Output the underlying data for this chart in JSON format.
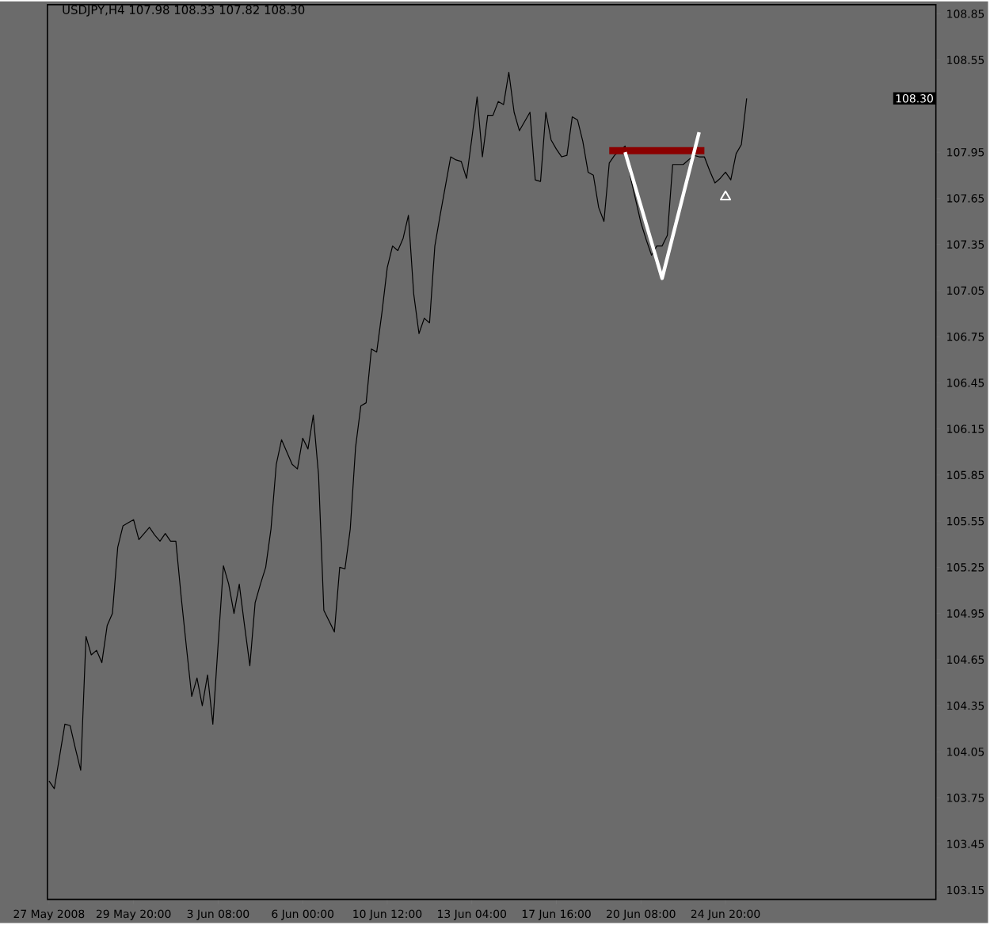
{
  "chart_data": {
    "type": "line",
    "title": "USDJPY,H4  107.98 108.33 107.82 108.30",
    "categories": [
      "27 May 2008",
      null,
      null,
      null,
      null,
      null,
      null,
      null,
      null,
      null,
      null,
      null,
      null,
      null,
      null,
      null,
      "29 May 20:00",
      null,
      null,
      null,
      null,
      null,
      null,
      null,
      null,
      null,
      null,
      null,
      null,
      null,
      null,
      null,
      "3 Jun 08:00",
      null,
      null,
      null,
      null,
      null,
      null,
      null,
      null,
      null,
      null,
      null,
      null,
      null,
      null,
      null,
      "6 Jun 00:00",
      null,
      null,
      null,
      null,
      null,
      null,
      null,
      null,
      null,
      null,
      null,
      null,
      null,
      null,
      null,
      "10 Jun 12:00",
      null,
      null,
      null,
      null,
      null,
      null,
      null,
      null,
      null,
      null,
      null,
      null,
      null,
      null,
      null,
      "13 Jun 04:00",
      null,
      null,
      null,
      null,
      null,
      null,
      null,
      null,
      null,
      null,
      null,
      null,
      null,
      null,
      null,
      "17 Jun 16:00",
      null,
      null,
      null,
      null,
      null,
      null,
      null,
      null,
      null,
      null,
      null,
      null,
      null,
      null,
      null,
      "20 Jun 08:00",
      null,
      null,
      null,
      null,
      null,
      null,
      null,
      null,
      null,
      null,
      null,
      null,
      null,
      null,
      null,
      "24 Jun 20:00",
      null,
      null,
      null,
      null,
      null,
      null,
      null,
      null,
      null,
      null,
      null,
      null,
      null,
      null,
      null,
      null,
      null,
      null,
      null,
      null,
      null,
      null,
      null,
      null,
      null,
      null,
      null,
      null,
      null,
      null,
      null,
      null,
      null,
      null,
      null,
      null,
      null,
      null,
      null
    ],
    "ylim": [
      103.09,
      108.91
    ],
    "yticks": [
      103.15,
      103.45,
      103.75,
      104.05,
      104.35,
      104.65,
      104.95,
      105.25,
      105.55,
      105.85,
      106.15,
      106.45,
      106.75,
      107.05,
      107.35,
      107.65,
      107.95,
      108.55,
      108.85
    ],
    "grid": false,
    "annotations": [
      "108.30"
    ],
    "series": [
      {
        "color": "#000000",
        "values": [
          103.86,
          103.81,
          104.02,
          104.23,
          104.22,
          104.07,
          103.93,
          104.8,
          104.68,
          104.71,
          104.63,
          104.87,
          104.95,
          105.38,
          105.52,
          105.54,
          105.56,
          105.43,
          105.47,
          105.51,
          105.46,
          105.42,
          105.47,
          105.42,
          105.42,
          105.06,
          104.73,
          104.41,
          104.53,
          104.35,
          104.55,
          104.23,
          104.75,
          105.26,
          105.14,
          104.95,
          105.14,
          104.87,
          104.61,
          105.02,
          105.14,
          105.25,
          105.5,
          105.92,
          106.08,
          106.0,
          105.92,
          105.89,
          106.09,
          106.02,
          106.24,
          105.85,
          104.97,
          104.9,
          104.83,
          105.25,
          105.24,
          105.5,
          106.03,
          106.3,
          106.32,
          106.67,
          106.65,
          106.91,
          107.2,
          107.34,
          107.31,
          107.39,
          107.54,
          107.03,
          106.77,
          106.87,
          106.84,
          107.34,
          107.54,
          107.73,
          107.92,
          107.9,
          107.89,
          107.78,
          108.04,
          108.31,
          107.92,
          108.19,
          108.19,
          108.28,
          108.26,
          108.47,
          108.21,
          108.09,
          108.15,
          108.21,
          107.77,
          107.76,
          108.21,
          108.03,
          107.97,
          107.92,
          107.93,
          108.18,
          108.16,
          108.02,
          107.82,
          107.8,
          107.59,
          107.5,
          107.88,
          107.93,
          107.96,
          107.99,
          107.79,
          107.64,
          107.49,
          107.38,
          107.28,
          107.34,
          107.34,
          107.41,
          107.87,
          107.87,
          107.87,
          null,
          107.93,
          107.92,
          107.92,
          107.83,
          107.75,
          107.78,
          107.82,
          107.77,
          107.94,
          108.0,
          108.3,
          null,
          null,
          null,
          null,
          null,
          null,
          null,
          null,
          null,
          null,
          null,
          null,
          null,
          null,
          null,
          null,
          null,
          null,
          null,
          null,
          null,
          null,
          null,
          null,
          null,
          null,
          null,
          null,
          null,
          null,
          null,
          null,
          null,
          null,
          null
        ]
      },
      {
        "color": "#8b0000",
        "values": [
          null,
          null,
          null,
          null,
          null,
          null,
          null,
          null,
          null,
          null,
          null,
          null,
          null,
          null,
          null,
          null,
          null,
          null,
          null,
          null,
          null,
          null,
          null,
          null,
          null,
          null,
          null,
          null,
          null,
          null,
          null,
          null,
          null,
          null,
          null,
          null,
          null,
          null,
          null,
          null,
          null,
          null,
          null,
          null,
          null,
          null,
          null,
          null,
          null,
          null,
          null,
          null,
          null,
          null,
          null,
          null,
          null,
          null,
          null,
          null,
          null,
          null,
          null,
          null,
          null,
          null,
          null,
          null,
          null,
          null,
          null,
          null,
          null,
          null,
          null,
          null,
          null,
          null,
          null,
          null,
          null,
          null,
          null,
          null,
          null,
          null,
          null,
          null,
          null,
          null,
          null,
          null,
          null,
          null,
          null,
          null,
          null,
          null,
          null,
          null,
          null,
          null,
          null,
          null,
          null,
          null,
          107.96,
          null,
          null,
          null,
          null,
          null,
          null,
          null,
          null,
          null,
          null,
          null,
          null,
          null,
          null,
          null,
          null,
          null,
          107.96,
          null,
          null,
          null,
          null,
          null,
          null,
          null,
          null,
          null,
          null,
          null,
          null,
          null,
          null,
          null,
          null,
          null,
          null,
          null,
          null,
          null,
          null,
          null,
          null,
          null,
          null,
          null,
          null,
          null,
          null,
          null,
          null,
          null,
          null,
          null,
          null,
          null,
          null,
          null,
          null,
          null,
          null,
          null
        ]
      },
      {
        "color": "#ffffff",
        "values": [
          null,
          null,
          null,
          null,
          null,
          null,
          null,
          null,
          null,
          null,
          null,
          null,
          null,
          null,
          null,
          null,
          null,
          null,
          null,
          null,
          null,
          null,
          null,
          null,
          null,
          null,
          null,
          null,
          null,
          null,
          null,
          null,
          null,
          null,
          null,
          null,
          null,
          null,
          null,
          null,
          null,
          null,
          null,
          null,
          null,
          null,
          null,
          null,
          null,
          null,
          null,
          null,
          null,
          null,
          null,
          null,
          null,
          null,
          null,
          null,
          null,
          null,
          null,
          null,
          null,
          null,
          null,
          null,
          null,
          null,
          null,
          null,
          null,
          null,
          null,
          null,
          null,
          null,
          null,
          null,
          null,
          null,
          null,
          null,
          null,
          null,
          null,
          null,
          null,
          null,
          null,
          null,
          null,
          null,
          null,
          null,
          null,
          null,
          null,
          null,
          null,
          null,
          null,
          null,
          null,
          null,
          null,
          null,
          null,
          107.95,
          null,
          null,
          null,
          null,
          null,
          null,
          107.13,
          null,
          null,
          null,
          null,
          null,
          null,
          108.08,
          null,
          null,
          null,
          null,
          null,
          null,
          null,
          null,
          null,
          null,
          null,
          null,
          null,
          null,
          null,
          null,
          null,
          null,
          null,
          null,
          null,
          null,
          null,
          null,
          null,
          null,
          null,
          null,
          null,
          null,
          null,
          null,
          null,
          null,
          null,
          null,
          null,
          null,
          null,
          null,
          null,
          null,
          null,
          null
        ]
      },
      {
        "type": "scatter",
        "marker": "triangle",
        "color": "#ffffff",
        "values": [
          null,
          null,
          null,
          null,
          null,
          null,
          null,
          null,
          null,
          null,
          null,
          null,
          null,
          null,
          null,
          null,
          null,
          null,
          null,
          null,
          null,
          null,
          null,
          null,
          null,
          null,
          null,
          null,
          null,
          null,
          null,
          null,
          null,
          null,
          null,
          null,
          null,
          null,
          null,
          null,
          null,
          null,
          null,
          null,
          null,
          null,
          null,
          null,
          null,
          null,
          null,
          null,
          null,
          null,
          null,
          null,
          null,
          null,
          null,
          null,
          null,
          null,
          null,
          null,
          null,
          null,
          null,
          null,
          null,
          null,
          null,
          null,
          null,
          null,
          null,
          null,
          null,
          null,
          null,
          null,
          null,
          null,
          null,
          null,
          null,
          null,
          null,
          null,
          null,
          null,
          null,
          null,
          null,
          null,
          null,
          null,
          null,
          null,
          null,
          null,
          null,
          null,
          null,
          null,
          null,
          null,
          null,
          null,
          null,
          null,
          null,
          null,
          null,
          null,
          null,
          null,
          null,
          null,
          null,
          null,
          null,
          null,
          null,
          null,
          null,
          null,
          null,
          null,
          107.66,
          null,
          null,
          null,
          null,
          null,
          null,
          null,
          null,
          null,
          null,
          null,
          null,
          null,
          null,
          null,
          null,
          null,
          null,
          null,
          null,
          null,
          null,
          null,
          null,
          null,
          null,
          null,
          null,
          null,
          null,
          null,
          null,
          null,
          null,
          null,
          null,
          null,
          null,
          null
        ]
      }
    ]
  }
}
